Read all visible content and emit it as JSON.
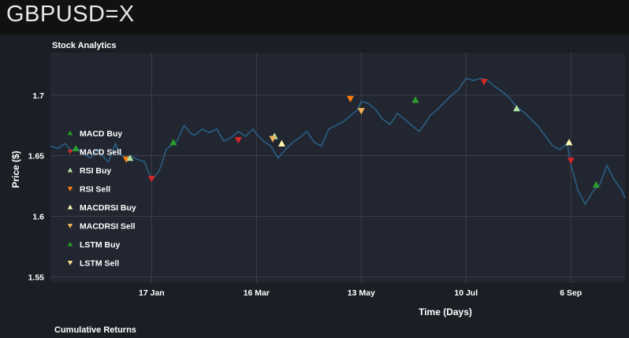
{
  "page": {
    "title": "GBPUSD=X"
  },
  "panels": {
    "stock_analytics_title": "Stock Analytics",
    "cumulative_returns_title": "Cumulative Returns"
  },
  "colors": {
    "background": "#111111",
    "plot_bg": "#222631",
    "line": "#2a5f82",
    "grid": "#3a3f4a",
    "macd_buy": "#2ca02c",
    "macd_sell": "#d62728",
    "rsi_buy": "#b5e0a0",
    "rsi_sell": "#ff7f0e",
    "macdrsi_buy": "#fffbb0",
    "macdrsi_sell": "#f2b45a",
    "lstm_buy": "#2ca02c",
    "lstm_sell": "#ffe08a"
  },
  "chart_data": {
    "type": "line",
    "title": "Stock Analytics",
    "xlabel": "Time (Days)",
    "ylabel": "Price ($)",
    "ylim": [
      1.545,
      1.735
    ],
    "xlim": [
      0,
      318
    ],
    "yticks": [
      1.55,
      1.6,
      1.65,
      1.7
    ],
    "ytick_labels": [
      "1.55",
      "1.6",
      "1.65",
      "1.7"
    ],
    "xticks": [
      {
        "day": 56,
        "label": "17 Jan"
      },
      {
        "day": 114,
        "label": "16 Mar"
      },
      {
        "day": 172,
        "label": "13 May"
      },
      {
        "day": 230,
        "label": "10 Jul"
      },
      {
        "day": 288,
        "label": "6 Sep"
      }
    ],
    "grid": true,
    "legend_position": "center-left",
    "series": [
      {
        "name": "Price",
        "x": [
          0,
          4,
          8,
          12,
          14,
          18,
          22,
          26,
          28,
          32,
          36,
          38,
          42,
          44,
          48,
          52,
          56,
          60,
          62,
          64,
          68,
          70,
          74,
          78,
          80,
          84,
          88,
          92,
          96,
          100,
          104,
          108,
          112,
          114,
          118,
          122,
          126,
          130,
          134,
          138,
          142,
          146,
          150,
          152,
          154,
          158,
          162,
          166,
          170,
          172,
          176,
          180,
          184,
          188,
          192,
          196,
          200,
          204,
          208,
          210,
          214,
          218,
          222,
          226,
          230,
          234,
          238,
          242,
          246,
          250,
          254,
          258,
          262,
          266,
          270,
          274,
          278,
          282,
          286,
          288,
          292,
          296,
          300,
          304,
          308,
          312,
          316,
          318
        ],
        "y": [
          1.658,
          1.656,
          1.66,
          1.654,
          1.657,
          1.652,
          1.648,
          1.655,
          1.651,
          1.645,
          1.66,
          1.652,
          1.648,
          1.65,
          1.647,
          1.645,
          1.63,
          1.637,
          1.645,
          1.655,
          1.66,
          1.662,
          1.675,
          1.668,
          1.667,
          1.672,
          1.669,
          1.672,
          1.662,
          1.665,
          1.67,
          1.666,
          1.672,
          1.668,
          1.662,
          1.658,
          1.648,
          1.655,
          1.661,
          1.665,
          1.67,
          1.661,
          1.658,
          1.665,
          1.672,
          1.675,
          1.678,
          1.683,
          1.688,
          1.695,
          1.693,
          1.688,
          1.68,
          1.676,
          1.685,
          1.68,
          1.675,
          1.67,
          1.678,
          1.683,
          1.688,
          1.694,
          1.7,
          1.705,
          1.714,
          1.712,
          1.714,
          1.712,
          1.707,
          1.703,
          1.698,
          1.69,
          1.686,
          1.68,
          1.674,
          1.666,
          1.658,
          1.655,
          1.66,
          1.643,
          1.621,
          1.61,
          1.62,
          1.626,
          1.642,
          1.63,
          1.622,
          1.615
        ]
      }
    ],
    "signals": [
      {
        "series": "MACD Buy",
        "x": 14,
        "y": 1.656,
        "marker": "up"
      },
      {
        "series": "RSI Sell",
        "x": 42,
        "y": 1.647,
        "marker": "down"
      },
      {
        "series": "RSI Buy",
        "x": 44,
        "y": 1.648,
        "marker": "up"
      },
      {
        "series": "MACD Sell",
        "x": 56,
        "y": 1.631,
        "marker": "down"
      },
      {
        "series": "LSTM Buy",
        "x": 68,
        "y": 1.661,
        "marker": "up"
      },
      {
        "series": "MACD Sell",
        "x": 104,
        "y": 1.663,
        "marker": "down"
      },
      {
        "series": "RSI Buy",
        "x": 124,
        "y": 1.666,
        "marker": "up"
      },
      {
        "series": "MACDRSI Sell",
        "x": 123,
        "y": 1.664,
        "marker": "down"
      },
      {
        "series": "MACDRSI Buy",
        "x": 128,
        "y": 1.66,
        "marker": "up"
      },
      {
        "series": "RSI Sell",
        "x": 166,
        "y": 1.697,
        "marker": "down"
      },
      {
        "series": "MACDRSI Sell",
        "x": 172,
        "y": 1.687,
        "marker": "down"
      },
      {
        "series": "LSTM Buy",
        "x": 202,
        "y": 1.696,
        "marker": "up"
      },
      {
        "series": "MACD Sell",
        "x": 240,
        "y": 1.711,
        "marker": "down"
      },
      {
        "series": "RSI Buy",
        "x": 258,
        "y": 1.689,
        "marker": "up"
      },
      {
        "series": "MACDRSI Buy",
        "x": 287,
        "y": 1.661,
        "marker": "up"
      },
      {
        "series": "MACD Sell",
        "x": 288,
        "y": 1.646,
        "marker": "down"
      },
      {
        "series": "LSTM Buy",
        "x": 302,
        "y": 1.626,
        "marker": "up"
      }
    ],
    "legend": [
      {
        "label": "MACD Buy",
        "marker": "up",
        "color_key": "macd_buy"
      },
      {
        "label": "MACD Sell",
        "marker": "down",
        "color_key": "macd_sell"
      },
      {
        "label": "RSI Buy",
        "marker": "up",
        "color_key": "rsi_buy"
      },
      {
        "label": "RSI Sell",
        "marker": "down",
        "color_key": "rsi_sell"
      },
      {
        "label": "MACDRSI Buy",
        "marker": "up",
        "color_key": "macdrsi_buy"
      },
      {
        "label": "MACDRSI Sell",
        "marker": "down",
        "color_key": "macdrsi_sell"
      },
      {
        "label": "LSTM Buy",
        "marker": "up",
        "color_key": "lstm_buy"
      },
      {
        "label": "LSTM Sell",
        "marker": "down",
        "color_key": "lstm_sell"
      }
    ]
  }
}
